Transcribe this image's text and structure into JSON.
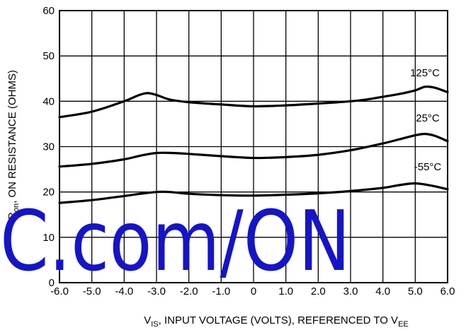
{
  "chart_data": {
    "type": "line",
    "title": "",
    "xlabel": {
      "main": "V",
      "sub": "IS",
      "rest": ", INPUT VOLTAGE (VOLTS), REFERENCED TO V",
      "sub2": "EE"
    },
    "ylabel": {
      "main": "R",
      "sub": "on",
      "rest": ", ON RESISTANCE (OHMS)"
    },
    "xlim": [
      -6.0,
      6.0
    ],
    "ylim": [
      0,
      60
    ],
    "x_ticks": [
      "-6.0",
      "-5.0",
      "-4.0",
      "-3.0",
      "-2.0",
      "-1.0",
      "0",
      "1.0",
      "2.0",
      "3.0",
      "4.0",
      "5.0",
      "6.0"
    ],
    "y_ticks": [
      "0",
      "10",
      "20",
      "30",
      "40",
      "50",
      "60"
    ],
    "grid": true,
    "series": [
      {
        "name": "125°C",
        "x": [
          -6.0,
          -5.0,
          -4.0,
          -3.6,
          -3.3,
          -3.0,
          -2.6,
          -2.0,
          -1.0,
          0.0,
          1.0,
          2.0,
          3.0,
          3.5,
          4.0,
          4.5,
          5.0,
          5.3,
          5.6,
          6.0
        ],
        "y": [
          36.5,
          37.7,
          40.0,
          41.2,
          41.8,
          41.4,
          40.4,
          39.8,
          39.3,
          38.9,
          39.1,
          39.5,
          40.0,
          40.4,
          41.0,
          41.6,
          42.4,
          43.2,
          43.0,
          42.0
        ]
      },
      {
        "name": "25°C",
        "x": [
          -6.0,
          -5.0,
          -4.0,
          -3.5,
          -3.0,
          -2.5,
          -2.0,
          -1.0,
          0.0,
          1.0,
          2.0,
          3.0,
          4.0,
          4.5,
          5.0,
          5.3,
          5.6,
          6.0
        ],
        "y": [
          25.6,
          26.2,
          27.2,
          28.0,
          28.6,
          28.6,
          28.4,
          27.9,
          27.5,
          27.7,
          28.2,
          29.2,
          30.7,
          31.6,
          32.5,
          32.8,
          32.4,
          31.2
        ]
      },
      {
        "name": "-55°C",
        "x": [
          -6.0,
          -5.0,
          -4.0,
          -3.5,
          -3.0,
          -2.6,
          -2.0,
          -1.0,
          0.0,
          1.0,
          2.0,
          3.0,
          4.0,
          4.5,
          5.0,
          5.5,
          6.0
        ],
        "y": [
          17.6,
          18.2,
          19.1,
          19.6,
          20.0,
          20.0,
          19.6,
          19.3,
          19.2,
          19.4,
          19.7,
          20.2,
          20.9,
          21.5,
          21.9,
          21.4,
          20.6
        ]
      }
    ]
  },
  "watermark": {
    "text": "C.com/ON"
  }
}
